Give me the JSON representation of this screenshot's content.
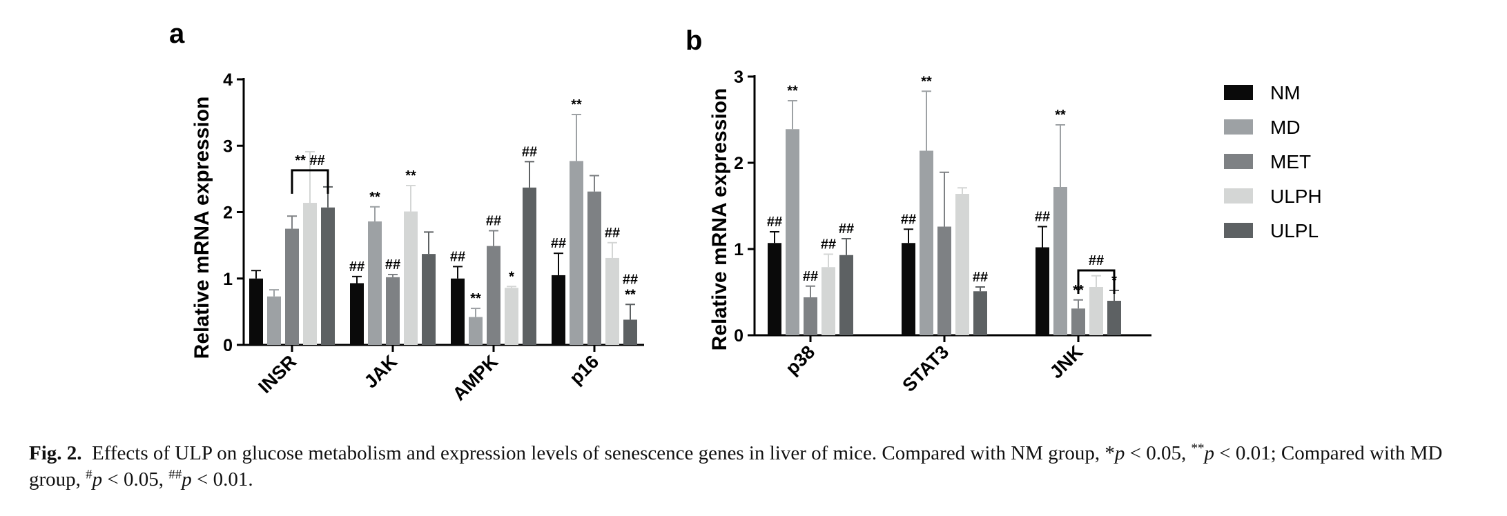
{
  "figure": {
    "legend": [
      {
        "name": "NM",
        "color": "#0a0a0a"
      },
      {
        "name": "MD",
        "color": "#9da1a4"
      },
      {
        "name": "MET",
        "color": "#7e8184"
      },
      {
        "name": "ULPH",
        "color": "#d4d6d5"
      },
      {
        "name": "ULPL",
        "color": "#5d6163"
      }
    ]
  },
  "chart_data": [
    {
      "type": "bar",
      "panel": "a",
      "ylabel": "Relative mRNA expression",
      "ylim": [
        0,
        4
      ],
      "yticks": [
        0,
        1,
        2,
        3,
        4
      ],
      "categories": [
        "INSR",
        "JAK",
        "AMPK",
        "p16"
      ],
      "series": [
        {
          "name": "NM",
          "values": [
            1.0,
            0.93,
            1.0,
            1.05
          ],
          "errors": [
            0.12,
            0.1,
            0.18,
            0.33
          ],
          "labels": [
            "",
            "##",
            "##",
            "##"
          ]
        },
        {
          "name": "MD",
          "values": [
            0.73,
            1.86,
            0.42,
            2.77
          ],
          "errors": [
            0.1,
            0.22,
            0.13,
            0.7
          ],
          "labels": [
            "",
            "**",
            "**",
            "**"
          ]
        },
        {
          "name": "MET",
          "values": [
            1.75,
            1.02,
            1.49,
            2.31
          ],
          "errors": [
            0.19,
            0.04,
            0.23,
            0.24
          ],
          "labels": [
            "",
            "##",
            "##",
            ""
          ]
        },
        {
          "name": "ULPH",
          "values": [
            2.14,
            2.01,
            0.86,
            1.31
          ],
          "errors": [
            0.77,
            0.39,
            0.02,
            0.23
          ],
          "labels": [
            "",
            "**",
            "*",
            "##"
          ]
        },
        {
          "name": "ULPL",
          "values": [
            2.07,
            1.37,
            2.37,
            0.38
          ],
          "errors": [
            0.31,
            0.33,
            0.39,
            0.23
          ],
          "labels": [
            "",
            "",
            "##",
            "##\n**"
          ]
        }
      ],
      "annotations": [
        {
          "category": "INSR",
          "from": "MET",
          "to": "ULPL",
          "text": "** ##"
        }
      ]
    },
    {
      "type": "bar",
      "panel": "b",
      "ylabel": "Relative mRNA expression",
      "ylim": [
        0,
        3
      ],
      "yticks": [
        0,
        1,
        2,
        3
      ],
      "categories": [
        "p38",
        "STAT3",
        "JNK"
      ],
      "series": [
        {
          "name": "NM",
          "values": [
            1.07,
            1.07,
            1.02
          ],
          "errors": [
            0.13,
            0.16,
            0.24
          ],
          "labels": [
            "##",
            "##",
            "##"
          ]
        },
        {
          "name": "MD",
          "values": [
            2.39,
            2.14,
            1.72
          ],
          "errors": [
            0.33,
            0.69,
            0.72
          ],
          "labels": [
            "**",
            "**",
            "**"
          ]
        },
        {
          "name": "MET",
          "values": [
            0.44,
            1.26,
            0.31
          ],
          "errors": [
            0.13,
            0.63,
            0.1
          ],
          "labels": [
            "##",
            "",
            "**"
          ]
        },
        {
          "name": "ULPH",
          "values": [
            0.79,
            1.64,
            0.56
          ],
          "errors": [
            0.15,
            0.07,
            0.13
          ],
          "labels": [
            "##",
            "",
            ""
          ]
        },
        {
          "name": "ULPL",
          "values": [
            0.93,
            0.51,
            0.4
          ],
          "errors": [
            0.19,
            0.05,
            0.12
          ],
          "labels": [
            "##",
            "##",
            "*"
          ]
        }
      ],
      "annotations": [
        {
          "category": "JNK",
          "from": "MET",
          "to": "ULPL",
          "text": "##"
        }
      ]
    }
  ],
  "caption": {
    "label": "Fig. 2.",
    "text1": "Effects of ULP on glucose metabolism and expression levels of senescence genes in liver of mice. Compared with NM group, *",
    "p1": "p",
    "text2": " < 0.05, ",
    "sup2": "**",
    "p2": "p",
    "text3": " < 0.01; Compared with MD group, ",
    "sup3": "#",
    "p3": "p",
    "text4": " < 0.05, ",
    "sup4": "##",
    "p4": "p",
    "text5": " < 0.01."
  }
}
